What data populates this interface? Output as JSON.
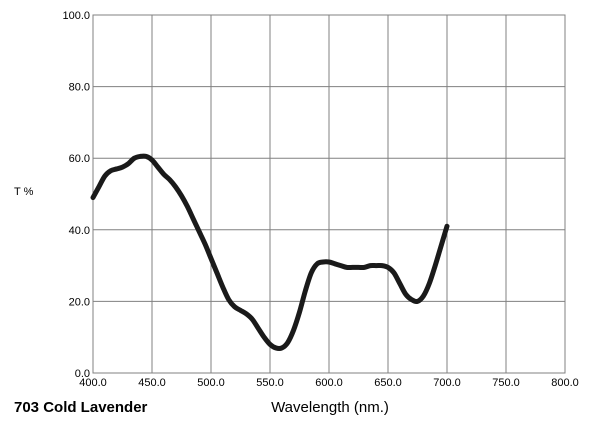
{
  "chart_data": {
    "type": "line",
    "title": "703 Cold Lavender",
    "xlabel": "Wavelength (nm.)",
    "ylabel": "T %",
    "xlim": [
      400,
      800
    ],
    "ylim": [
      0,
      100
    ],
    "x_ticks": [
      "400.0",
      "450.0",
      "500.0",
      "550.0",
      "600.0",
      "650.0",
      "700.0",
      "750.0",
      "800.0"
    ],
    "y_ticks": [
      "0.0",
      "20.0",
      "40.0",
      "60.0",
      "80.0",
      "100.0"
    ],
    "grid": true,
    "legend": "none",
    "line_color": "#1a1a1a",
    "series": [
      {
        "x": [
          400,
          405,
          410,
          415,
          420,
          425,
          430,
          435,
          440,
          445,
          450,
          455,
          460,
          465,
          470,
          475,
          480,
          485,
          490,
          495,
          500,
          505,
          510,
          515,
          520,
          525,
          530,
          535,
          540,
          545,
          550,
          555,
          560,
          565,
          570,
          575,
          580,
          585,
          590,
          595,
          600,
          605,
          610,
          615,
          620,
          625,
          630,
          635,
          640,
          645,
          650,
          655,
          660,
          665,
          670,
          675,
          680,
          685,
          690,
          695,
          700
        ],
        "y": [
          49,
          52,
          55,
          56.5,
          57,
          57.5,
          58.5,
          60,
          60.5,
          60.5,
          59.5,
          57.5,
          55.5,
          54,
          52,
          49.5,
          46.5,
          43,
          39.5,
          36,
          32,
          28,
          24,
          20.5,
          18.5,
          17.5,
          16.5,
          15,
          12.5,
          10,
          8,
          7,
          7,
          8.5,
          12,
          17,
          23,
          28,
          30.5,
          31,
          31,
          30.5,
          30,
          29.5,
          29.5,
          29.5,
          29.5,
          30,
          30,
          30,
          29.5,
          28,
          25,
          22,
          20.5,
          20,
          21.5,
          25,
          30,
          35.5,
          41
        ]
      }
    ]
  }
}
